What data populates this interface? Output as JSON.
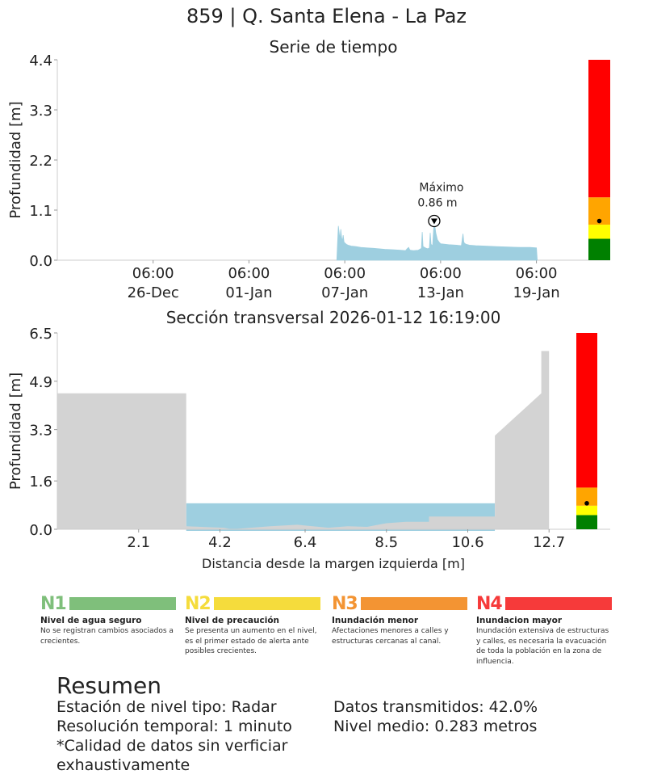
{
  "title": "859 | Q. Santa Elena - La Paz",
  "chart_data": [
    {
      "type": "area",
      "title": "Serie de tiempo",
      "ylabel": "Profundidad [m]",
      "xlabel": "",
      "ylim": [
        0.0,
        4.4
      ],
      "yticks": [
        "0.0",
        "1.1",
        "2.2",
        "3.3",
        "4.4"
      ],
      "xticks": [
        {
          "day": 6,
          "time": "06:00",
          "date": "26-Dec"
        },
        {
          "day": 12,
          "time": "06:00",
          "date": "01-Jan"
        },
        {
          "day": 18,
          "time": "06:00",
          "date": "07-Jan"
        },
        {
          "day": 24,
          "time": "06:00",
          "date": "13-Jan"
        },
        {
          "day": 30,
          "time": "06:00",
          "date": "19-Jan"
        }
      ],
      "x_start": "2025-12-20",
      "x_range_days": [
        0,
        32.7
      ],
      "series": [
        {
          "values_x_days": [
            17.5,
            17.55,
            17.6,
            17.7,
            17.75,
            17.8,
            17.85,
            17.9,
            17.95,
            18.0,
            18.1,
            18.2,
            18.4,
            18.7,
            19.0,
            19.4,
            19.8,
            20.5,
            21.0,
            21.5,
            21.8,
            21.9,
            22.0,
            22.05,
            22.1,
            22.3,
            22.6,
            22.8,
            22.85,
            22.9,
            23.0,
            23.1,
            23.2,
            23.3,
            23.35,
            23.4,
            23.5,
            23.6,
            23.7,
            23.8,
            23.9,
            24.0,
            24.5,
            25.0,
            25.3,
            25.4,
            25.45,
            25.5,
            25.6,
            25.8,
            26.2,
            26.8,
            27.5,
            28.2,
            29.0,
            29.6,
            30.0,
            30.05
          ],
          "values_y_m": [
            0.0,
            0.38,
            0.75,
            0.45,
            0.68,
            0.5,
            0.42,
            0.55,
            0.4,
            0.38,
            0.35,
            0.33,
            0.31,
            0.3,
            0.28,
            0.27,
            0.26,
            0.24,
            0.23,
            0.22,
            0.21,
            0.25,
            0.28,
            0.24,
            0.22,
            0.21,
            0.22,
            0.26,
            0.62,
            0.3,
            0.28,
            0.26,
            0.25,
            0.27,
            0.6,
            0.35,
            0.32,
            0.86,
            0.6,
            0.45,
            0.4,
            0.36,
            0.34,
            0.33,
            0.32,
            0.58,
            0.4,
            0.37,
            0.35,
            0.33,
            0.32,
            0.31,
            0.3,
            0.29,
            0.28,
            0.28,
            0.27,
            0.0
          ],
          "color": "#9ecfe0"
        }
      ],
      "max_annotation": {
        "label": "Máximo",
        "value_text": "0.86 m",
        "x_day": 23.6,
        "y": 0.86
      },
      "level_bar": {
        "segments_m": [
          [
            0,
            0.47,
            "#008000"
          ],
          [
            0.47,
            0.78,
            "#ffff00"
          ],
          [
            0.78,
            1.38,
            "#ffa500"
          ],
          [
            1.38,
            4.4,
            "#ff0000"
          ]
        ],
        "marker_m": 0.86
      }
    },
    {
      "type": "area",
      "title": "Sección transversal 2026-01-12 16:19:00",
      "xlabel": "Distancia desde la margen izquierda [m]",
      "ylabel": "Profundidad [m]",
      "ylim": [
        0.0,
        6.5
      ],
      "xlim": [
        0.0,
        13.3
      ],
      "yticks": [
        "0.0",
        "1.6",
        "3.3",
        "4.9",
        "6.5"
      ],
      "xticks": [
        "2.1",
        "4.2",
        "6.4",
        "8.5",
        "10.6",
        "12.7"
      ],
      "xtick_values": [
        2.1,
        4.2,
        6.4,
        8.5,
        10.6,
        12.7
      ],
      "ground_profile": [
        [
          0.0,
          4.5
        ],
        [
          3.33,
          4.5
        ],
        [
          3.33,
          0.1
        ],
        [
          4.3,
          0.05
        ],
        [
          4.5,
          0.0
        ],
        [
          5.5,
          0.1
        ],
        [
          6.2,
          0.15
        ],
        [
          7.0,
          0.05
        ],
        [
          7.5,
          0.1
        ],
        [
          8.0,
          0.08
        ],
        [
          8.5,
          0.2
        ],
        [
          9.0,
          0.25
        ],
        [
          9.6,
          0.25
        ],
        [
          9.6,
          0.42
        ],
        [
          11.3,
          0.42
        ],
        [
          11.3,
          3.1
        ],
        [
          12.5,
          4.5
        ],
        [
          12.5,
          5.9
        ],
        [
          12.7,
          5.9
        ],
        [
          12.7,
          0.0
        ]
      ],
      "water_level_m": 0.86,
      "water_x_range": [
        3.33,
        11.3
      ],
      "level_bar": {
        "segments_m": [
          [
            0,
            0.47,
            "#008000"
          ],
          [
            0.47,
            0.78,
            "#ffff00"
          ],
          [
            0.78,
            1.38,
            "#ffa500"
          ],
          [
            1.38,
            6.5,
            "#ff0000"
          ]
        ],
        "marker_m": 0.86
      }
    }
  ],
  "legend": [
    {
      "code": "N1",
      "name": "Nivel de agua seguro",
      "desc": "No se registran cambios asociados a crecientes.",
      "color": "#7fbf7b",
      "code_color": "#7fbf7b"
    },
    {
      "code": "N2",
      "name": "Nivel de precaución",
      "desc": "Se presenta un aumento en el nivel, es el primer estado de alerta ante posibles crecientes.",
      "color": "#f5dc3c",
      "code_color": "#f5dc3c"
    },
    {
      "code": "N3",
      "name": "Inundación menor",
      "desc": "Afectaciones menores a calles y estructuras cercanas al canal.",
      "color": "#f39433",
      "code_color": "#f39433"
    },
    {
      "code": "N4",
      "name": "Inundacion mayor",
      "desc": "Inundación extensiva de estructuras y calles, es necesaria la evacuación de toda la población en la zona de influencia.",
      "color": "#f63a3a",
      "code_color": "#f63a3a"
    }
  ],
  "summary": {
    "title": "Resumen",
    "left": [
      "Estación de nivel tipo: Radar",
      "Resolución temporal: 1 minuto",
      "*Calidad de datos sin verficiar",
      "exhaustivamente"
    ],
    "right": [
      "Datos transmitidos: 42.0%",
      "Nivel medio: 0.283 metros"
    ]
  }
}
